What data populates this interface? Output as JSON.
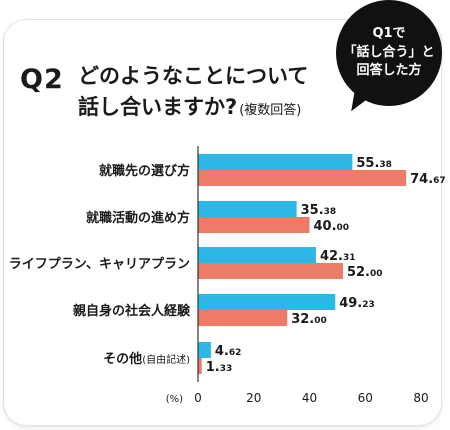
{
  "header": {
    "question": "Q2",
    "title_line1": "どのようなことについて",
    "title_line2": "話し合いますか?",
    "title_note": "(複数回答)"
  },
  "bubble": {
    "line1": "Q1で",
    "line2": "「話し合う」と",
    "line3": "回答した方"
  },
  "colors": {
    "series_a": "#2BB8E6",
    "series_b": "#EE7A68",
    "axis": "#333333"
  },
  "chart_data": {
    "type": "bar",
    "orientation": "horizontal",
    "categories": [
      {
        "label": "就職先の選び方",
        "note": ""
      },
      {
        "label": "就職活動の進め方",
        "note": ""
      },
      {
        "label": "ライフプラン、キャリアプラン",
        "note": ""
      },
      {
        "label": "親自身の社会人経験",
        "note": ""
      },
      {
        "label": "その他",
        "note": "(自由記述)"
      }
    ],
    "series": [
      {
        "values": [
          55.38,
          35.38,
          42.31,
          49.23,
          4.62
        ]
      },
      {
        "values": [
          74.67,
          40.0,
          52.0,
          32.0,
          1.33
        ]
      }
    ],
    "x_ticks": [
      "0",
      "20",
      "40",
      "60",
      "80"
    ],
    "x_unit": "(%)",
    "xlim": [
      0,
      80
    ],
    "grid": false,
    "legend": "none"
  }
}
